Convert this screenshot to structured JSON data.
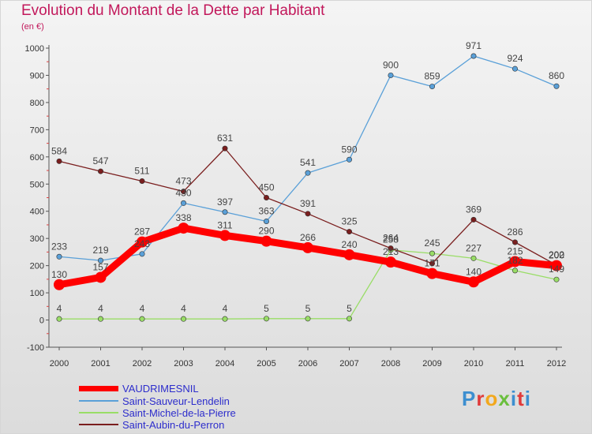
{
  "header": {
    "title": "Evolution du Montant de la Dette par Habitant",
    "unit": "(en €)"
  },
  "logo": {
    "text": "Proxiti",
    "letter_colors": [
      "#3d8fd0",
      "#e03b3b",
      "#f2a81d",
      "#6abf3d",
      "#3d8fd0",
      "#e03b3b"
    ]
  },
  "chart_data": {
    "type": "line",
    "title": "Evolution du Montant de la Dette par Habitant",
    "ylabel": "(en €)",
    "xlabel": "",
    "x": [
      "2000",
      "2001",
      "2002",
      "2003",
      "2004",
      "2005",
      "2006",
      "2007",
      "2008",
      "2009",
      "2010",
      "2011",
      "2012"
    ],
    "ylim": [
      -100,
      1000
    ],
    "yticks": [
      -100,
      0,
      100,
      200,
      300,
      400,
      500,
      600,
      700,
      800,
      900,
      1000
    ],
    "grid": false,
    "legend_position": "bottom-left",
    "series": [
      {
        "name": "VAUDRIMESNIL",
        "color": "#ff0000",
        "values": [
          130,
          157,
          287,
          338,
          311,
          290,
          266,
          240,
          213,
          171,
          140,
          215,
          200
        ],
        "labels": [
          "130",
          "157",
          "287",
          "338",
          "311",
          "290",
          "266",
          "240",
          "213",
          "171",
          "140",
          "215",
          "200"
        ]
      },
      {
        "name": "Saint-Sauveur-Lendelin",
        "color": "#5aa0d8",
        "values": [
          233,
          219,
          243,
          430,
          397,
          363,
          541,
          590,
          900,
          859,
          971,
          924,
          860
        ],
        "labels": [
          "233",
          "219",
          "243",
          "430",
          "397",
          "363",
          "541",
          "590",
          "900",
          "859",
          "971",
          "924",
          "860"
        ]
      },
      {
        "name": "Saint-Michel-de-la-Pierre",
        "color": "#99dd66",
        "values": [
          4,
          4,
          4,
          4,
          4,
          5,
          5,
          5,
          258,
          245,
          227,
          182,
          149
        ],
        "labels": [
          "4",
          "4",
          "4",
          "4",
          "4",
          "5",
          "5",
          "5",
          "258",
          "245",
          "227",
          "182",
          "149"
        ]
      },
      {
        "name": "Saint-Aubin-du-Perron",
        "color": "#7a1e1e",
        "values": [
          584,
          547,
          511,
          473,
          631,
          450,
          391,
          325,
          264,
          208,
          369,
          286,
          202
        ],
        "labels": [
          "584",
          "547",
          "511",
          "473",
          "631",
          "450",
          "391",
          "325",
          "264",
          "",
          "369",
          "286",
          "202"
        ]
      }
    ]
  }
}
